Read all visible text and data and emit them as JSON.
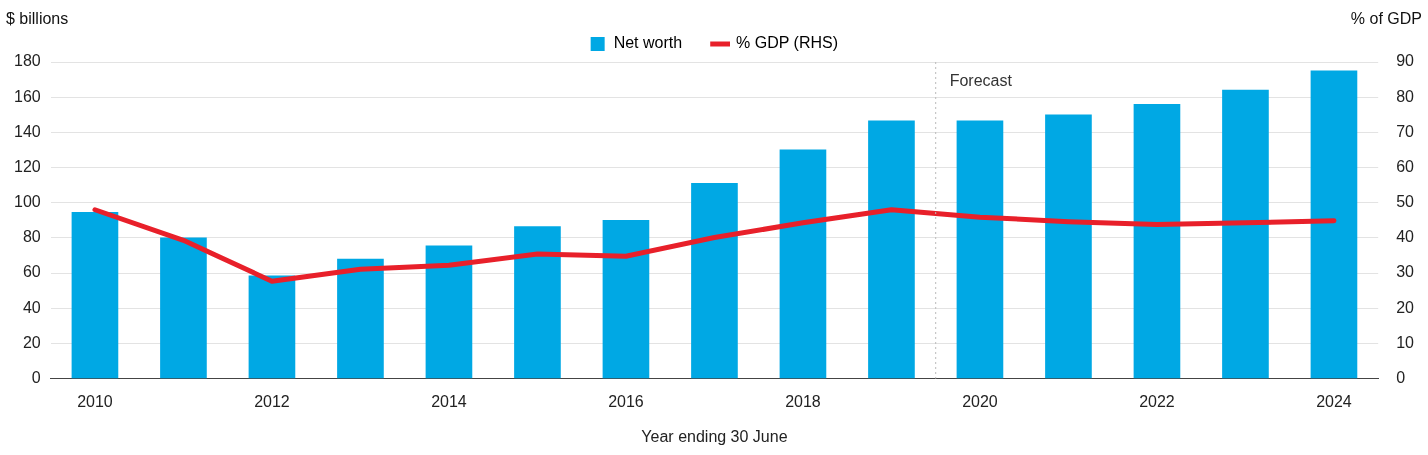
{
  "chart_data": {
    "type": "bar",
    "xlabel": "Year ending 30 June",
    "ylabel": "$ billions",
    "y2label": "% of GDP",
    "x": [
      2010,
      2011,
      2012,
      2013,
      2014,
      2015,
      2016,
      2017,
      2018,
      2019,
      2020,
      2021,
      2022,
      2023,
      2024
    ],
    "xlim": [
      2009.5,
      2024.5
    ],
    "xticks": [
      2010,
      2012,
      2014,
      2016,
      2018,
      2020,
      2022,
      2024
    ],
    "ylim": [
      0,
      180
    ],
    "yticks": [
      0,
      20,
      40,
      60,
      80,
      100,
      120,
      140,
      160,
      180
    ],
    "y2lim": [
      0,
      90
    ],
    "y2ticks": [
      0,
      10,
      20,
      30,
      40,
      50,
      60,
      70,
      80,
      90
    ],
    "series": [
      {
        "name": "Net worth",
        "color": "#00a8e4",
        "values": [
          94.5,
          80,
          58.5,
          68,
          75.5,
          86.5,
          90,
          111,
          130,
          146.5,
          146.5,
          150,
          156,
          164,
          175
        ]
      },
      {
        "name": "% GDP (RHS)",
        "type": "line",
        "axis": "y2",
        "color": "#e8202a",
        "values": [
          48,
          39.3,
          27.7,
          31.1,
          32.2,
          35.4,
          34.8,
          40.1,
          44.3,
          48,
          45.9,
          44.6,
          43.8,
          44.3,
          44.9
        ]
      }
    ],
    "ref_lines": [
      {
        "axis": "x",
        "value": 2019.5,
        "label": "Forecast",
        "color": "#bbbbbb",
        "line_style": "dotted"
      }
    ],
    "grid": "y",
    "legend": "top",
    "marker": "none",
    "line_style": "solid"
  }
}
